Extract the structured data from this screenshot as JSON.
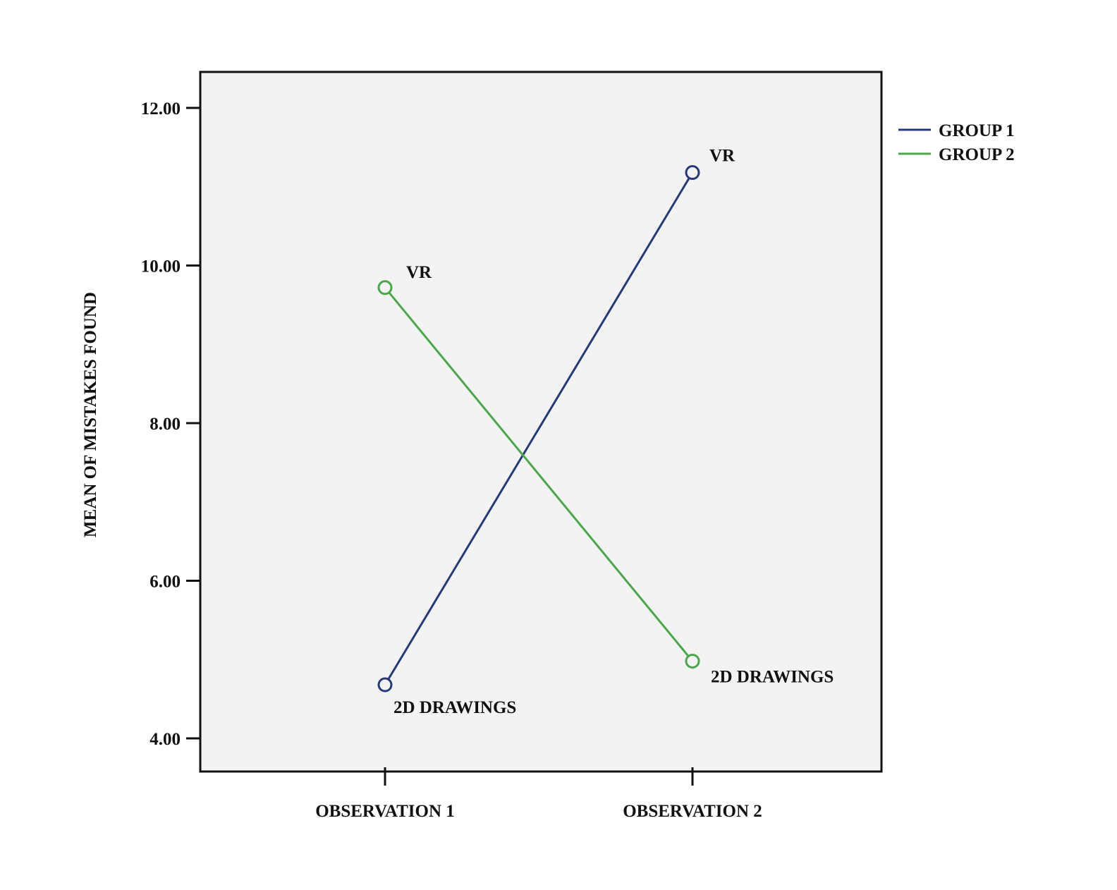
{
  "chart_data": {
    "type": "line",
    "categories": [
      "OBSERVATION 1",
      "OBSERVATION 2"
    ],
    "xlabel": "",
    "ylabel": "MEAN OF MISTAKES FOUND",
    "ylim": [
      3.6,
      12.5
    ],
    "yticks": [
      4,
      6,
      8,
      10,
      12
    ],
    "ytick_labels": [
      "4.00",
      "6.00",
      "8.00",
      "10.00",
      "12.00"
    ],
    "grid": false,
    "legend_position": "right-top",
    "series": [
      {
        "name": "GROUP 1",
        "color": "#263a7a",
        "values": [
          4.68,
          11.18
        ],
        "point_labels": [
          "2D DRAWINGS",
          "VR"
        ]
      },
      {
        "name": "GROUP 2",
        "color": "#4aa84a",
        "values": [
          9.72,
          4.98
        ],
        "point_labels": [
          "VR",
          "2D DRAWINGS"
        ]
      }
    ]
  },
  "colors": {
    "plot_background": "#f3f3f3",
    "axis": "#111111"
  }
}
